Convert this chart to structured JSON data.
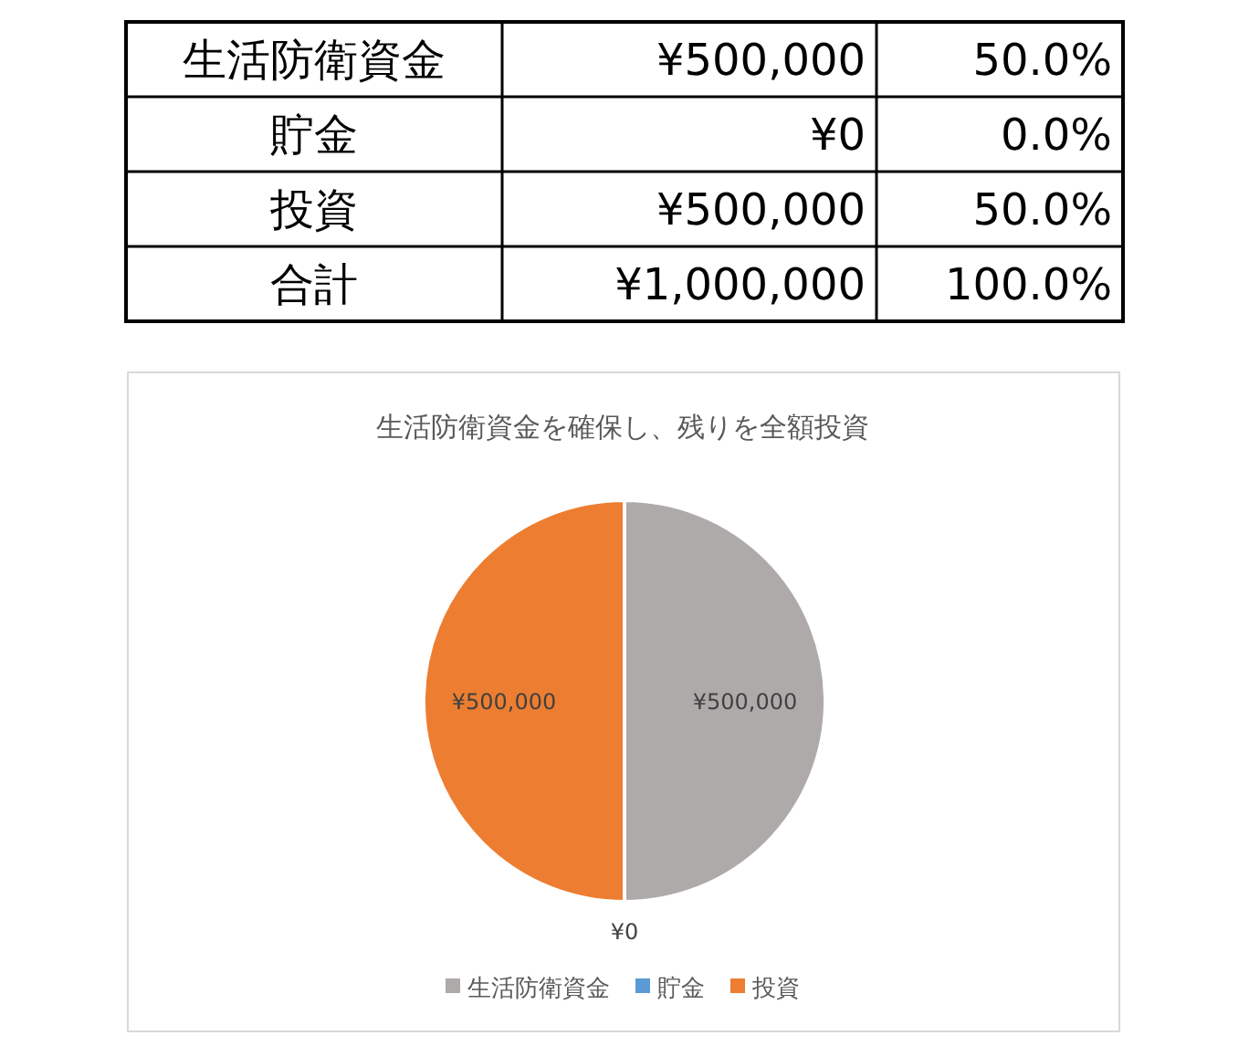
{
  "chart_data": [
    {
      "type": "other",
      "annotations": [
        "生活防衛資金",
        "¥500,000",
        "50.0%",
        "貯金",
        "¥0",
        "0.0%",
        "投資",
        "¥500,000",
        "50.0%",
        "合計",
        "¥1,000,000",
        "100.0%"
      ]
    },
    {
      "type": "pie",
      "title": "生活防衛資金を確保し、残りを全額投資",
      "categories": [
        "生活防衛資金",
        "貯金",
        "投資"
      ],
      "values": [
        500000,
        0,
        500000
      ],
      "colors": [
        "#aeaaaa",
        "#5b9bd5",
        "#ed7d31"
      ],
      "value_labels": [
        "¥500,000",
        "¥0",
        "¥500,000"
      ],
      "legend": "bottom"
    }
  ]
}
